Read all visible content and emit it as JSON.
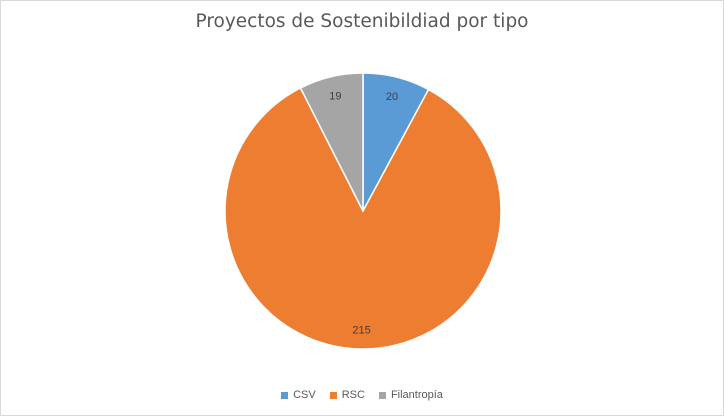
{
  "chart_data": {
    "type": "pie",
    "title": "Proyectos de Sostenibildiad por tipo",
    "categories": [
      "CSV",
      "RSC",
      "Filantropía"
    ],
    "values": [
      20,
      215,
      19
    ],
    "colors": [
      "#5b9bd5",
      "#ed7d31",
      "#a5a5a5"
    ],
    "start_angle_deg": 0,
    "direction": "clockwise",
    "data_labels": true,
    "legend_position": "bottom",
    "slice_border_color": "#ffffff"
  }
}
